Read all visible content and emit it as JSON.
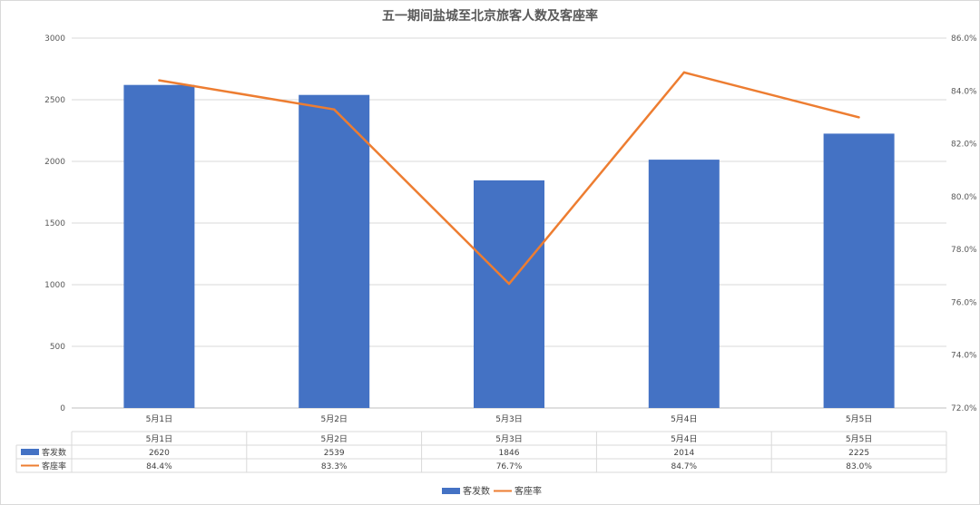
{
  "chart_data": {
    "type": "bar",
    "title": "五一期间盐城至北京旅客人数及客座率",
    "categories": [
      "5月1日",
      "5月2日",
      "5月3日",
      "5月4日",
      "5月5日"
    ],
    "series": [
      {
        "name": "客发数",
        "type": "bar",
        "axis": "left",
        "color": "#4472c4",
        "values": [
          2620,
          2539,
          1846,
          2014,
          2225
        ],
        "labels": [
          "2620",
          "2539",
          "1846",
          "2014",
          "2225"
        ]
      },
      {
        "name": "客座率",
        "type": "line",
        "axis": "right",
        "color": "#ed7d31",
        "values": [
          84.4,
          83.3,
          76.7,
          84.7,
          83.0
        ],
        "labels": [
          "84.4%",
          "83.3%",
          "76.7%",
          "84.7%",
          "83.0%"
        ]
      }
    ],
    "y_left": {
      "range": [
        0,
        3000
      ],
      "ticks": [
        0,
        500,
        1000,
        1500,
        2000,
        2500,
        3000
      ],
      "tick_labels": [
        "0",
        "500",
        "1000",
        "1500",
        "2000",
        "2500",
        "3000"
      ]
    },
    "y_right": {
      "range": [
        72,
        86
      ],
      "ticks": [
        72,
        74,
        76,
        78,
        80,
        82,
        84,
        86
      ],
      "tick_labels": [
        "72.0%",
        "74.0%",
        "76.0%",
        "78.0%",
        "80.0%",
        "82.0%",
        "84.0%",
        "86.0%"
      ]
    },
    "grid": true,
    "legend": "bottom",
    "data_table": true
  }
}
